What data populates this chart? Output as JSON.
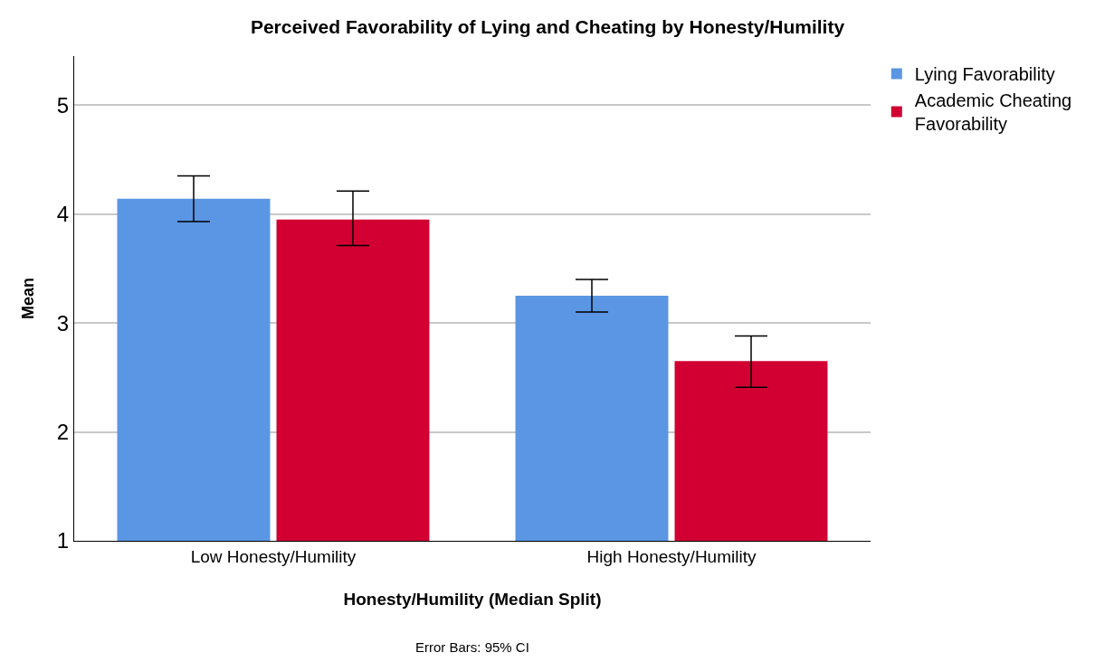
{
  "chart_data": {
    "type": "bar",
    "title": "Perceived Favorability of Lying and Cheating by Honesty/Humility",
    "xlabel": "Honesty/Humility (Median Split)",
    "ylabel": "Mean",
    "categories": [
      "Low Honesty/Humility",
      "High Honesty/Humility"
    ],
    "series": [
      {
        "name": "Lying Favorability",
        "color": "#5a96e3",
        "values": [
          4.14,
          3.25
        ],
        "errors": [
          [
            3.93,
            4.35
          ],
          [
            3.1,
            3.4
          ]
        ]
      },
      {
        "name": "Academic Cheating Favorability",
        "color": "#d20032",
        "values": [
          3.95,
          2.65
        ],
        "errors": [
          [
            3.71,
            4.21
          ],
          [
            2.41,
            2.88
          ]
        ]
      }
    ],
    "ylim": [
      1,
      5.45
    ],
    "yticks": [
      1,
      2,
      3,
      4,
      5
    ],
    "grid": "y",
    "legend": "top right",
    "annotations": [
      "Error Bars: 95% CI"
    ]
  }
}
